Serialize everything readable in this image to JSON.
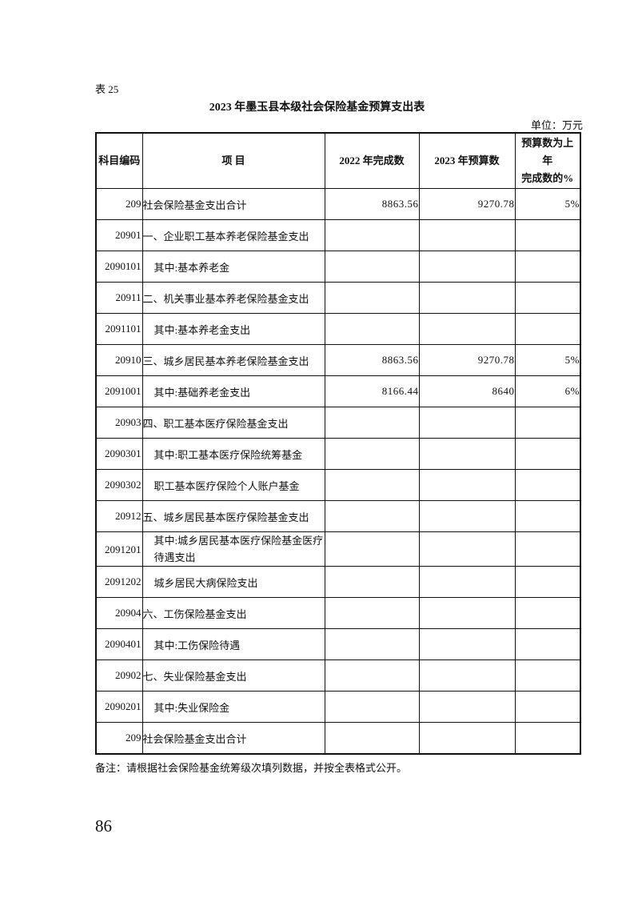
{
  "table_number": "表 25",
  "title": "2023 年墨玉县本级社会保险基金预算支出表",
  "unit": "单位：万元",
  "headers": [
    "科目编码",
    "项 目",
    "2022 年完成数",
    "2023 年预算数",
    "预算数为上年完成数的%"
  ],
  "header_pct_lines": [
    "预算数为上",
    "年",
    "完成数的%"
  ],
  "rows": [
    {
      "code": "209",
      "item": "社会保险基金支出合计",
      "y2022": "8863.56",
      "y2023": "9270.78",
      "pct": "5%"
    },
    {
      "code": "20901",
      "item": "一、企业职工基本养老保险基金支出",
      "y2022": "",
      "y2023": "",
      "pct": ""
    },
    {
      "code": "2090101",
      "item": "其中:基本养老金",
      "y2022": "",
      "y2023": "",
      "pct": ""
    },
    {
      "code": "20911",
      "item": "二、机关事业基本养老保险基金支出",
      "y2022": "",
      "y2023": "",
      "pct": ""
    },
    {
      "code": "2091101",
      "item": "其中:基本养老金支出",
      "y2022": "",
      "y2023": "",
      "pct": ""
    },
    {
      "code": "20910",
      "item": "三、城乡居民基本养老保险基金支出",
      "y2022": "8863.56",
      "y2023": "9270.78",
      "pct": "5%"
    },
    {
      "code": "2091001",
      "item": "其中:基础养老金支出",
      "y2022": "8166.44",
      "y2023": "8640",
      "pct": "6%"
    },
    {
      "code": "20903",
      "item": "四、职工基本医疗保险基金支出",
      "y2022": "",
      "y2023": "",
      "pct": ""
    },
    {
      "code": "2090301",
      "item": "其中:职工基本医疗保险统筹基金",
      "y2022": "",
      "y2023": "",
      "pct": ""
    },
    {
      "code": "2090302",
      "item": "职工基本医疗保险个人账户基金",
      "y2022": "",
      "y2023": "",
      "pct": ""
    },
    {
      "code": "20912",
      "item": "五、城乡居民基本医疗保险基金支出",
      "y2022": "",
      "y2023": "",
      "pct": ""
    },
    {
      "code": "2091201",
      "item": "其中:城乡居民基本医疗保险基金医疗待遇支出",
      "y2022": "",
      "y2023": "",
      "pct": ""
    },
    {
      "code": "2091202",
      "item": "城乡居民大病保险支出",
      "y2022": "",
      "y2023": "",
      "pct": ""
    },
    {
      "code": "20904",
      "item": "六、工伤保险基金支出",
      "y2022": "",
      "y2023": "",
      "pct": ""
    },
    {
      "code": "2090401",
      "item": "其中:工伤保险待遇",
      "y2022": "",
      "y2023": "",
      "pct": ""
    },
    {
      "code": "20902",
      "item": "七、失业保险基金支出",
      "y2022": "",
      "y2023": "",
      "pct": ""
    },
    {
      "code": "2090201",
      "item": "其中:失业保险金",
      "y2022": "",
      "y2023": "",
      "pct": ""
    },
    {
      "code": "209",
      "item": "社会保险基金支出合计",
      "y2022": "",
      "y2023": "",
      "pct": ""
    }
  ],
  "note": "备注：请根据社会保险基金统筹级次填列数据，并按全表格式公开。",
  "page_number": "86"
}
